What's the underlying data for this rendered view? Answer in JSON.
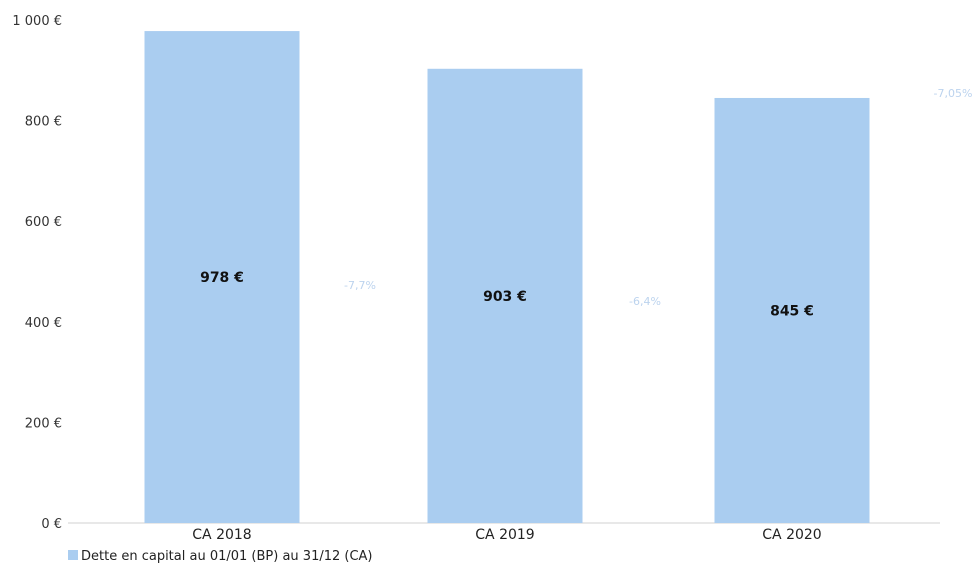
{
  "chart_data": {
    "type": "bar",
    "categories": [
      "CA 2018",
      "CA 2019",
      "CA 2020"
    ],
    "series": [
      {
        "name": "Dette en capital au 01/01 (BP) au 31/12 (CA)",
        "values": [
          978,
          903,
          845
        ],
        "value_labels": [
          "978 €",
          "903 €",
          "845 €"
        ],
        "color": "#aacdf0"
      }
    ],
    "ylim": [
      0,
      1000
    ],
    "y_ticks": [
      0,
      200,
      400,
      600,
      800,
      1000
    ],
    "y_tick_labels": [
      "0 €",
      "200 €",
      "400 €",
      "600 €",
      "800 €",
      "1 000 €"
    ],
    "annotations": [
      {
        "text": "-7,7%",
        "after_category": "CA 2018"
      },
      {
        "text": "-6,4%",
        "after_category": "CA 2019"
      },
      {
        "text": "-7,05%",
        "after_category": "CA 2020"
      }
    ],
    "legend_position": "bottom-left",
    "grid": false
  }
}
